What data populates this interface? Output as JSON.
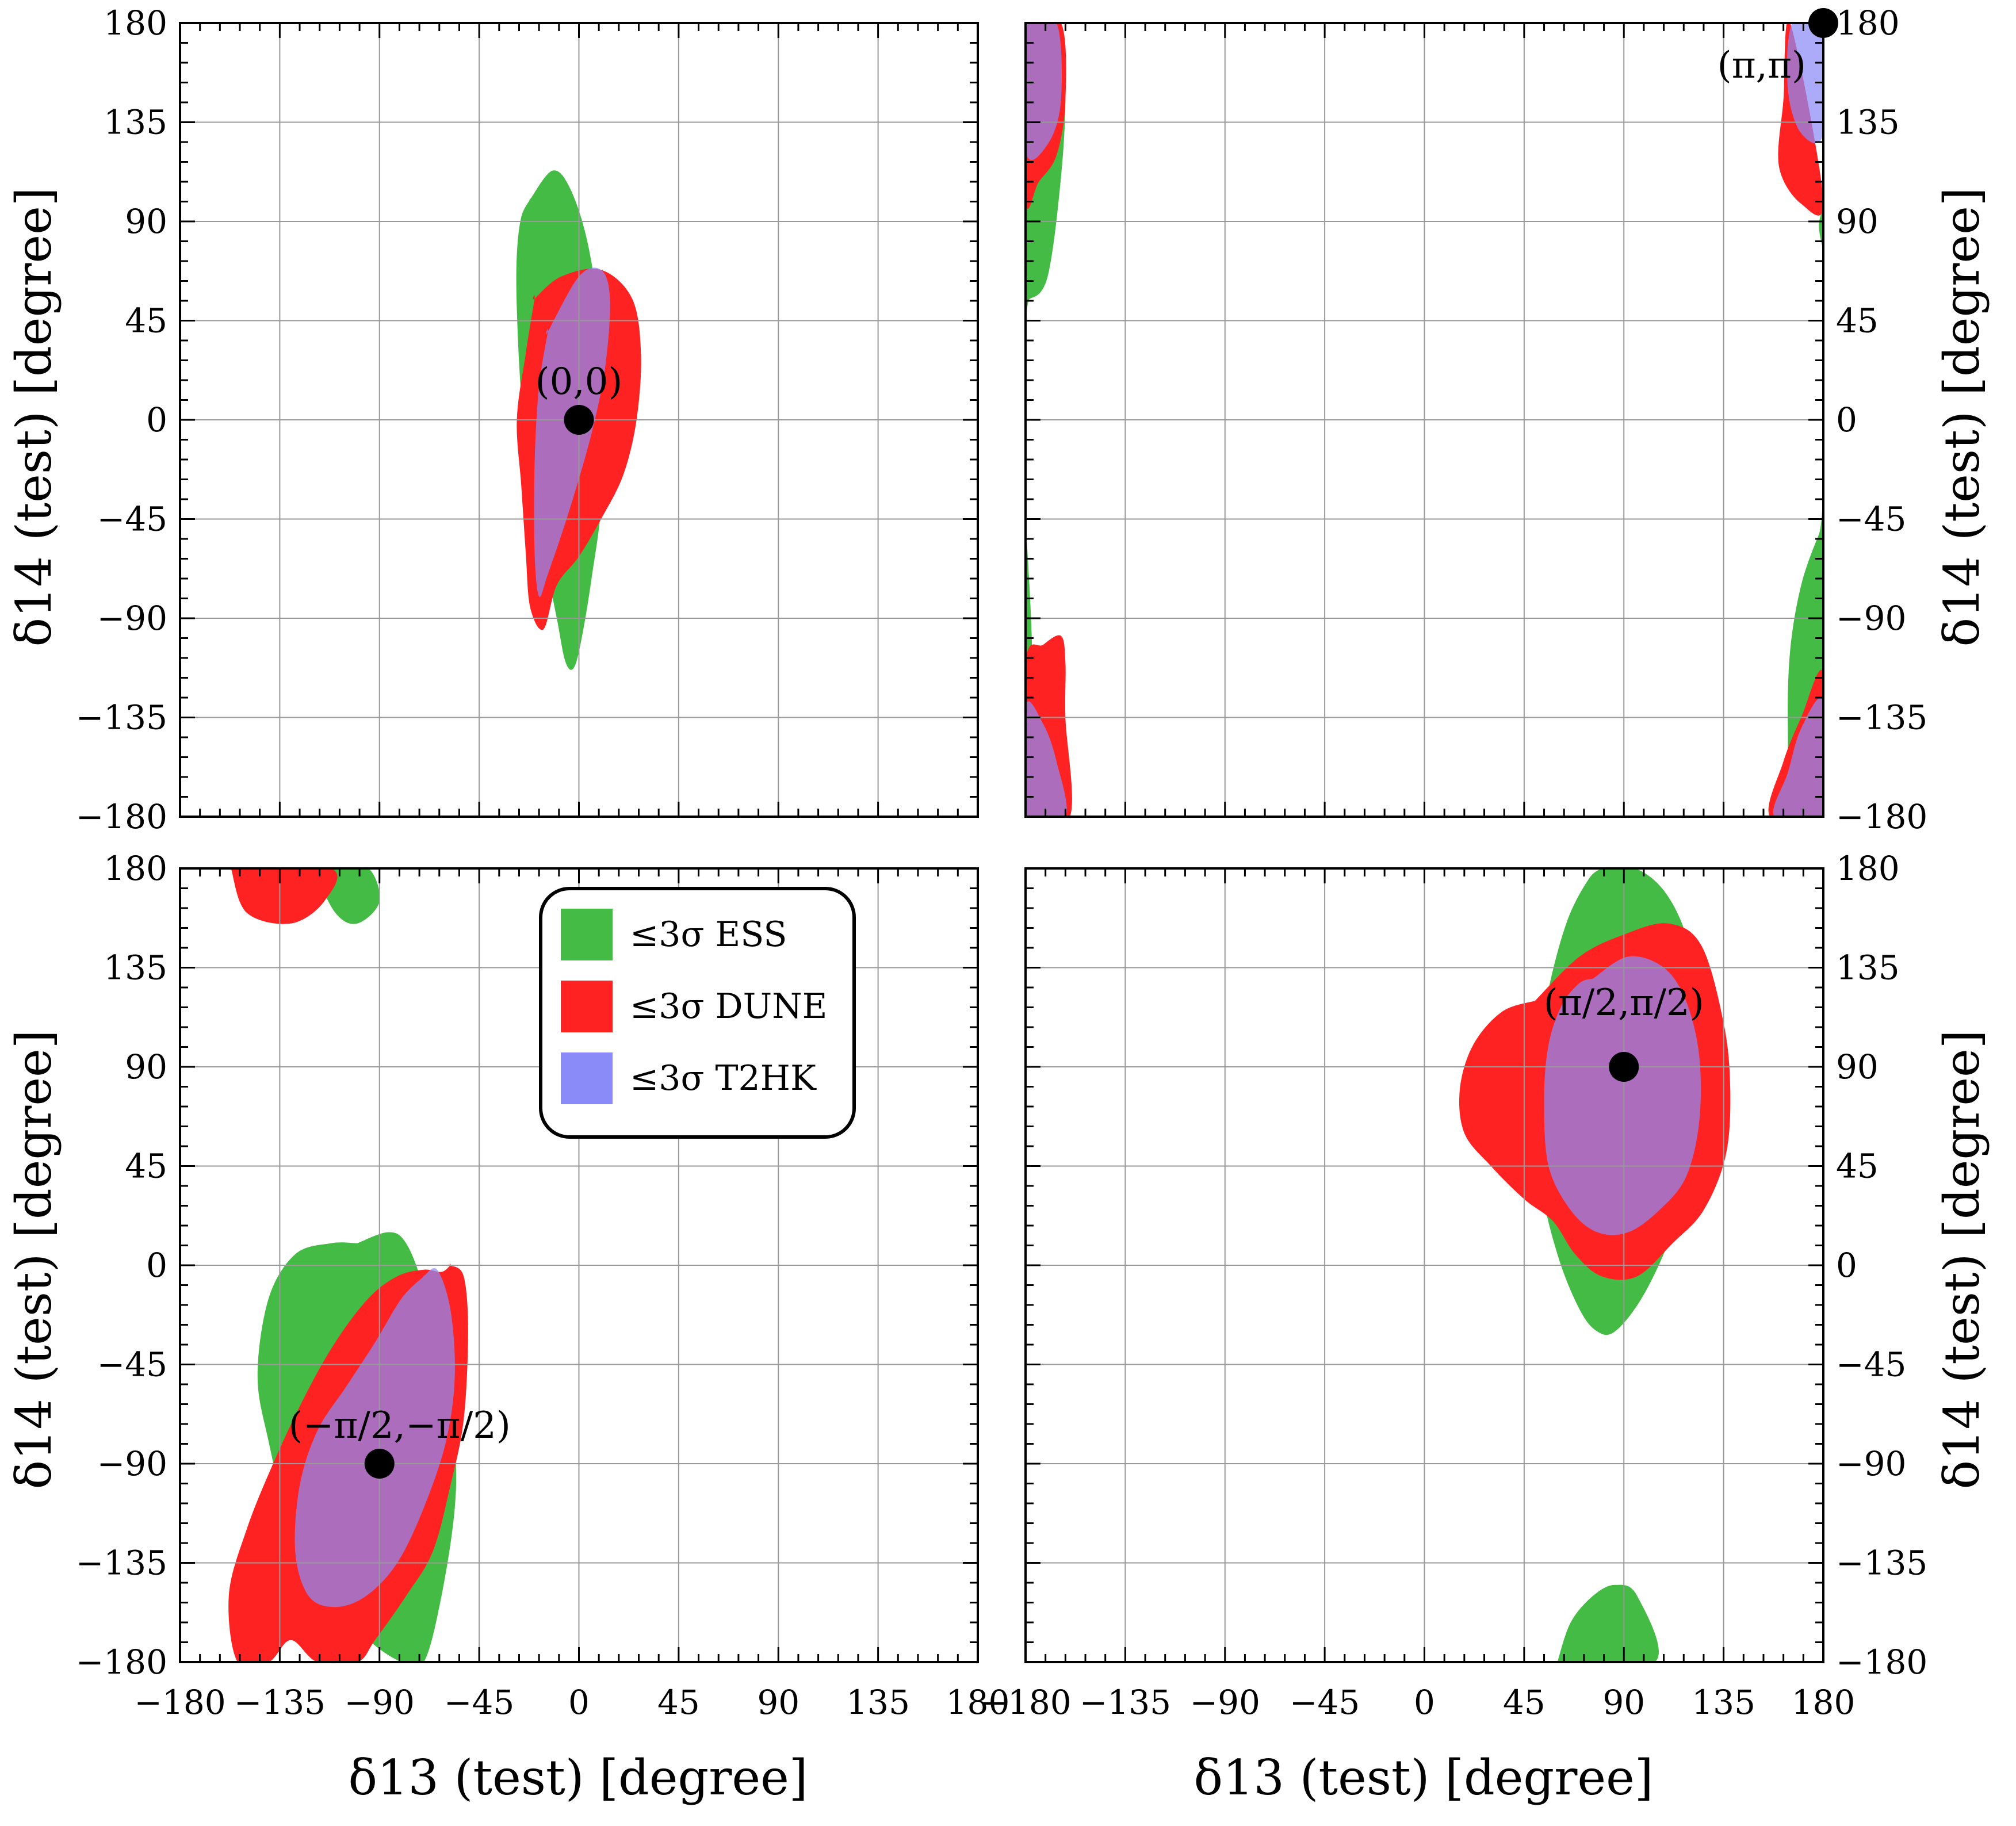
{
  "chart_data": {
    "type": "contour",
    "xlabel": "δ13 (test) [degree]",
    "ylabel": "δ14 (test) [degree]",
    "xlim": [
      -180,
      180
    ],
    "ylim": [
      -180,
      180
    ],
    "ticks": [
      -180,
      -135,
      -90,
      -45,
      0,
      45,
      90,
      135,
      180
    ],
    "tick_labels": [
      "−180",
      "−135",
      "−90",
      "−45",
      "0",
      "45",
      "90",
      "135",
      "180"
    ],
    "grid": true,
    "legend": {
      "placement": "top-right of bottom-left panel",
      "entries": [
        {
          "label": "≤3σ ESS",
          "color": "#44bb44"
        },
        {
          "label": "≤3σ DUNE",
          "color": "#ff2222"
        },
        {
          "label": "≤3σ T2HK",
          "color": "#8a8af8"
        }
      ]
    },
    "panels": [
      {
        "id": "top-left",
        "true_point": {
          "label": "(0,0)",
          "x": 0,
          "y": 0
        },
        "regions": [
          {
            "experiment": "ESS",
            "x": [
              -22,
              -12,
              -4,
              4,
              10,
              12,
              10,
              6,
              2,
              -2,
              -6,
              -10,
              -16,
              -22,
              -26,
              -28,
              -28,
              -26,
              -22
            ],
            "y": [
              100,
              113,
              105,
              80,
              40,
              0,
              -40,
              -70,
              -95,
              -112,
              -110,
              -90,
              -60,
              -30,
              10,
              50,
              75,
              92,
              100
            ]
          },
          {
            "experiment": "DUNE",
            "x": [
              -20,
              -8,
              10,
              24,
              28,
              26,
              20,
              10,
              0,
              -10,
              -16,
              -22,
              -24,
              -26,
              -28,
              -24,
              -20
            ],
            "y": [
              55,
              65,
              68,
              55,
              30,
              0,
              -25,
              -45,
              -62,
              -75,
              -95,
              -85,
              -60,
              -30,
              0,
              30,
              55
            ]
          },
          {
            "experiment": "T2HK",
            "x": [
              -14,
              0,
              10,
              14,
              12,
              6,
              -4,
              -14,
              -18,
              -20,
              -20,
              -18,
              -14
            ],
            "y": [
              40,
              65,
              68,
              55,
              25,
              -5,
              -40,
              -70,
              -80,
              -60,
              -20,
              15,
              40
            ]
          }
        ]
      },
      {
        "id": "top-right",
        "true_point": {
          "label": "(π,π)",
          "x": 180,
          "y": 180
        },
        "regions": [
          {
            "experiment": "ESS",
            "x": [
              -180,
              -165,
              -162,
              -164,
              -170,
              -178,
              -180
            ],
            "y": [
              180,
              180,
              150,
              110,
              65,
              55,
              60
            ]
          },
          {
            "experiment": "ESS",
            "x": [
              180,
              178,
              180
            ],
            "y": [
              95,
              88,
              78
            ]
          },
          {
            "experiment": "ESS",
            "x": [
              180,
              178,
              170,
              165,
              164,
              166,
              180
            ],
            "y": [
              -50,
              -52,
              -75,
              -105,
              -140,
              -180,
              -180
            ]
          },
          {
            "experiment": "ESS",
            "x": [
              -180,
              -178,
              -177,
              -178,
              -180
            ],
            "y": [
              -55,
              -80,
              -110,
              -130,
              -135
            ]
          },
          {
            "experiment": "DUNE",
            "x": [
              -180,
              -164,
              -162,
              -166,
              -174,
              -180
            ],
            "y": [
              180,
              180,
              145,
              120,
              108,
              100
            ]
          },
          {
            "experiment": "DUNE",
            "x": [
              165,
              162,
              160,
              170,
              180
            ],
            "y": [
              180,
              145,
              115,
              98,
              100
            ]
          },
          {
            "experiment": "DUNE",
            "x": [
              -180,
              -172,
              -164,
              -162,
              -162,
              -160,
              -180
            ],
            "y": [
              -110,
              -102,
              -98,
              -110,
              -135,
              -180,
              -180
            ]
          },
          {
            "experiment": "DUNE",
            "x": [
              180,
              170,
              162,
              156,
              180
            ],
            "y": [
              -115,
              -135,
              -155,
              -180,
              -180
            ]
          },
          {
            "experiment": "T2HK",
            "x": [
              -180,
              -166,
              -164,
              -170,
              -180
            ],
            "y": [
              180,
              180,
              145,
              125,
              122
            ]
          },
          {
            "experiment": "T2HK",
            "x": [
              166,
              164,
              170,
              180,
              180
            ],
            "y": [
              180,
              150,
              130,
              130,
              180
            ]
          },
          {
            "experiment": "T2HK",
            "x": [
              -180,
              -172,
              -166,
              -162,
              -180
            ],
            "y": [
              -130,
              -138,
              -155,
              -180,
              -180
            ]
          },
          {
            "experiment": "T2HK",
            "x": [
              180,
              170,
              164,
              158,
              180
            ],
            "y": [
              -128,
              -140,
              -160,
              -180,
              -180
            ]
          }
        ]
      },
      {
        "id": "bottom-left",
        "true_point": {
          "label": "(−π/2,−π/2)",
          "x": -90,
          "y": -90
        },
        "regions": [
          {
            "experiment": "ESS",
            "x": [
              -100,
              -86,
              -78,
              -70,
              -60,
              -56,
              -56,
              -62,
              -70,
              -80,
              -95,
              -115,
              -130,
              -140,
              -145,
              -140,
              -128,
              -112,
              -100
            ],
            "y": [
              10,
              15,
              10,
              -10,
              -45,
              -80,
              -110,
              -150,
              -180,
              -180,
              -170,
              -150,
              -120,
              -80,
              -50,
              -15,
              5,
              10,
              10
            ]
          },
          {
            "experiment": "ESS",
            "x": [
              -120,
              -110,
              -100,
              -90,
              -95,
              -110,
              -120
            ],
            "y": [
              180,
              160,
              155,
              165,
              180,
              180,
              180
            ]
          },
          {
            "experiment": "DUNE",
            "x": [
              -58,
              -52,
              -50,
              -52,
              -58,
              -66,
              -78,
              -92,
              -100,
              -118,
              -130,
              -140,
              -154,
              -158,
              -150,
              -138,
              -124,
              -110,
              -95,
              -82,
              -70,
              -62,
              -58
            ],
            "y": [
              0,
              -5,
              -30,
              -70,
              -100,
              -130,
              -150,
              -170,
              -180,
              -180,
              -170,
              -180,
              -180,
              -150,
              -120,
              -90,
              -60,
              -35,
              -15,
              -5,
              -2,
              -3,
              0
            ]
          },
          {
            "experiment": "DUNE",
            "x": [
              -157,
              -150,
              -130,
              -115,
              -112,
              -157
            ],
            "y": [
              180,
              160,
              155,
              165,
              180,
              180
            ]
          },
          {
            "experiment": "T2HK",
            "x": [
              -70,
              -64,
              -58,
              -56,
              -60,
              -70,
              -82,
              -96,
              -110,
              -122,
              -128,
              -126,
              -118,
              -105,
              -92,
              -80,
              -70
            ],
            "y": [
              -5,
              -2,
              -20,
              -50,
              -80,
              -110,
              -135,
              -150,
              -155,
              -150,
              -130,
              -100,
              -75,
              -55,
              -35,
              -15,
              -5
            ]
          }
        ]
      },
      {
        "id": "bottom-right",
        "true_point": {
          "label": "(π/2,π/2)",
          "x": 90,
          "y": 90
        },
        "regions": [
          {
            "experiment": "ESS",
            "x": [
              80,
              95,
              108,
              118,
              124,
              126,
              120,
              110,
              98,
              86,
              78,
              70,
              60,
              52,
              50,
              55,
              64,
              74,
              80
            ],
            "y": [
              180,
              180,
              170,
              150,
              120,
              80,
              40,
              10,
              -15,
              -30,
              -30,
              -20,
              5,
              40,
              80,
              120,
              155,
              175,
              180
            ]
          },
          {
            "experiment": "ESS",
            "x": [
              60,
              66,
              76,
              86,
              96,
              104,
              60
            ],
            "y": [
              -180,
              -162,
              -150,
              -145,
              -150,
              -180,
              -180
            ]
          },
          {
            "experiment": "DUNE",
            "x": [
              50,
              70,
              90,
              110,
              125,
              135,
              138,
              136,
              126,
              112,
              96,
              80,
              68,
              58,
              45,
              30,
              18,
              16,
              22,
              35,
              50
            ],
            "y": [
              120,
              140,
              150,
              155,
              145,
              110,
              80,
              50,
              25,
              10,
              -5,
              -5,
              5,
              20,
              30,
              45,
              60,
              80,
              100,
              115,
              120
            ]
          },
          {
            "experiment": "T2HK",
            "x": [
              76,
              92,
              108,
              118,
              124,
              124,
              118,
              106,
              92,
              78,
              66,
              56,
              54,
              56,
              62,
              70,
              76
            ],
            "y": [
              130,
              140,
              135,
              120,
              95,
              65,
              40,
              25,
              15,
              15,
              25,
              45,
              75,
              100,
              118,
              128,
              130
            ]
          }
        ]
      }
    ]
  }
}
